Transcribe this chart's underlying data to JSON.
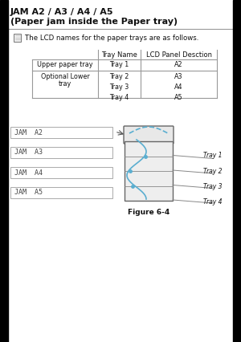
{
  "title_line1": "JAM A2 / A3 / A4 / A5",
  "title_line2": "(Paper jam inside the Paper tray)",
  "note_text": "The LCD names for the paper trays are as follows.",
  "table_col1_header": "Tray Name",
  "table_col2_header": "LCD Panel Desction",
  "row1_col1": "Upper paper tray",
  "row1_col2": "Tray 1",
  "row1_col3": "A2",
  "row2_col1a": "Optional Lower",
  "row2_col1b": "tray",
  "row2_col2": "Tray 2\nTray 3\nTray 4",
  "row2_col3": "A3\nA4\nA5",
  "jam_labels": [
    "JAM  A2",
    "JAM  A3",
    "JAM  A4",
    "JAM  A5"
  ],
  "tray_labels": [
    "Tray 1",
    "Tray 2",
    "Tray 3",
    "Tray 4"
  ],
  "figure_caption": "Figure 6-4",
  "bg_color": "#ffffff",
  "text_color": "#000000",
  "dark_color": "#111111",
  "gray_color": "#888888",
  "light_gray": "#cccccc",
  "table_line_color": "#999999",
  "jam_box_border": "#aaaaaa",
  "blue_color": "#5aaed0",
  "page_bar_color": "#000000",
  "title_underline_color": "#999999"
}
